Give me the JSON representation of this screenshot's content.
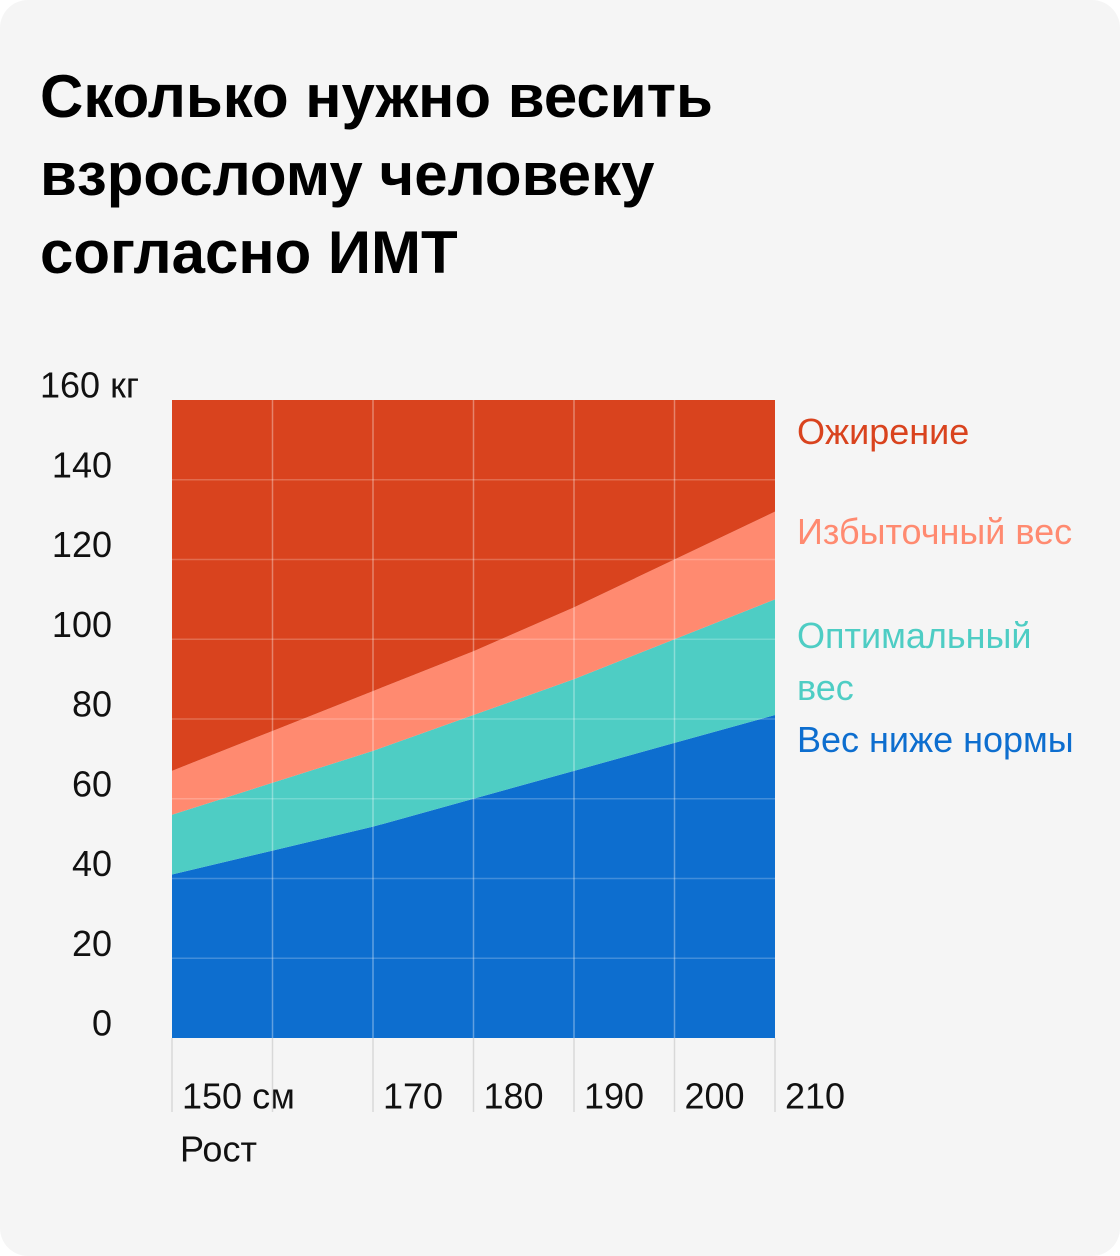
{
  "chart_data": {
    "type": "area",
    "stacked": true,
    "title": "Сколько нужно весить взрослому человеку согласно ИМТ",
    "x_label": "Рост",
    "x": [
      150,
      160,
      170,
      180,
      190,
      200,
      210
    ],
    "xlim": [
      150,
      210
    ],
    "xticks": [
      {
        "value": 150,
        "label": "150 см"
      },
      {
        "value": 160,
        "label": null
      },
      170,
      180,
      190,
      200,
      210
    ],
    "ylim": [
      0,
      160
    ],
    "yticks": [
      0,
      20,
      40,
      60,
      80,
      100,
      120,
      140,
      {
        "value": 160,
        "label": "160 кг"
      }
    ],
    "grid": true,
    "series": [
      {
        "name": "Вес ниже нормы",
        "color": "#0d6ecf",
        "values": [
          41,
          47,
          53,
          60,
          67,
          74,
          81
        ]
      },
      {
        "name": "Оптимальный вес",
        "color": "#4ecdc4",
        "values": [
          15,
          17,
          19,
          21,
          23,
          26,
          29
        ]
      },
      {
        "name": "Избыточный вес",
        "color": "#ff8a70",
        "values": [
          11,
          13,
          15,
          16,
          18,
          20,
          22
        ]
      },
      {
        "name": "Ожирение",
        "color": "#d9431e",
        "values": [
          93,
          83,
          73,
          63,
          52,
          40,
          28
        ]
      }
    ]
  }
}
